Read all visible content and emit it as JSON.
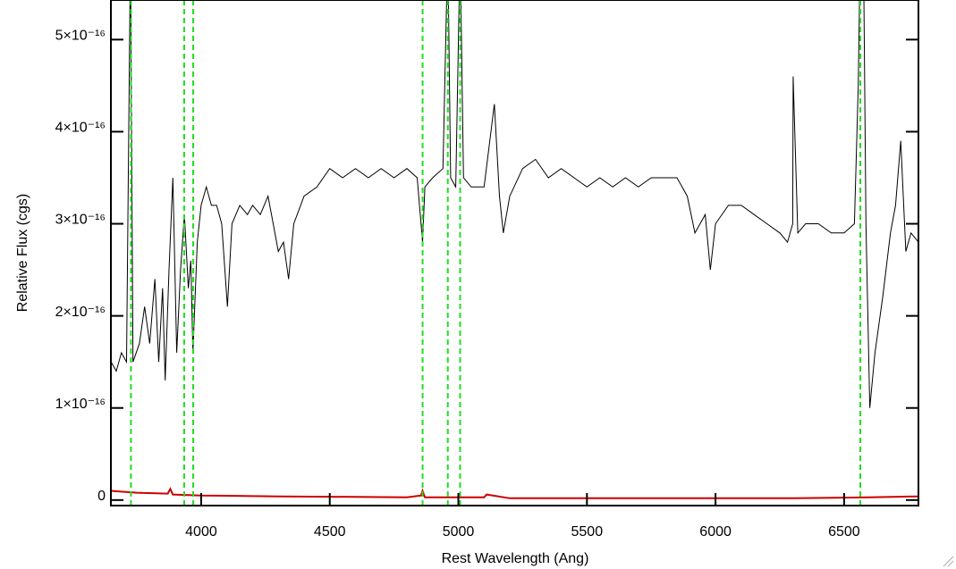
{
  "chart_data": {
    "type": "line",
    "xlabel": "Rest Wavelength (Ang)",
    "ylabel": "Relative Flux (cgs)",
    "xlim": [
      3649,
      6789
    ],
    "ylim": [
      -6e-18,
      5.43e-16
    ],
    "xticks": [
      4000,
      4500,
      5000,
      5500,
      6000,
      6500
    ],
    "yticks": [
      0,
      {
        "value": 1e-16,
        "label": "1×10⁻¹⁶"
      },
      {
        "value": 2e-16,
        "label": "2×10⁻¹⁶"
      },
      {
        "value": 3e-16,
        "label": "3×10⁻¹⁶"
      },
      {
        "value": 4e-16,
        "label": "4×10⁻¹⁶"
      },
      {
        "value": 5e-16,
        "label": "5×10⁻¹⁶"
      }
    ],
    "vlines": [
      3727,
      3934,
      3969,
      4861,
      4959,
      5007,
      6563
    ],
    "vline_color": "#22dd22",
    "series": [
      {
        "color": "#000000",
        "x": [
          3650,
          3670,
          3690,
          3710,
          3725,
          3735,
          3760,
          3780,
          3800,
          3820,
          3835,
          3850,
          3860,
          3875,
          3890,
          3905,
          3920,
          3935,
          3950,
          3960,
          3968,
          3985,
          4000,
          4020,
          4040,
          4060,
          4080,
          4102,
          4120,
          4150,
          4180,
          4200,
          4230,
          4260,
          4280,
          4300,
          4320,
          4340,
          4360,
          4400,
          4450,
          4500,
          4550,
          4600,
          4650,
          4700,
          4750,
          4800,
          4840,
          4855,
          4861,
          4870,
          4900,
          4940,
          4959,
          4970,
          4990,
          5007,
          5020,
          5050,
          5100,
          5140,
          5160,
          5175,
          5200,
          5250,
          5300,
          5350,
          5400,
          5450,
          5500,
          5550,
          5600,
          5650,
          5700,
          5750,
          5800,
          5850,
          5890,
          5920,
          5960,
          5980,
          6000,
          6050,
          6100,
          6150,
          6200,
          6250,
          6280,
          6300,
          6302,
          6320,
          6350,
          6400,
          6450,
          6500,
          6540,
          6555,
          6563,
          6575,
          6585,
          6600,
          6620,
          6650,
          6680,
          6700,
          6720,
          6740,
          6760,
          6789
        ],
        "values": [
          1.5e-16,
          1.4e-16,
          1.6e-16,
          1.5e-16,
          6e-16,
          1.5e-16,
          1.7e-16,
          2.1e-16,
          1.7e-16,
          2.4e-16,
          1.5e-16,
          2.3e-16,
          1.3e-16,
          2.5e-16,
          3.5e-16,
          1.6e-16,
          2.5e-16,
          3.1e-16,
          2.3e-16,
          2.6e-16,
          1.6e-16,
          2.8e-16,
          3.2e-16,
          3.4e-16,
          3.2e-16,
          3.2e-16,
          3e-16,
          2.1e-16,
          3e-16,
          3.2e-16,
          3.1e-16,
          3.2e-16,
          3.1e-16,
          3.3e-16,
          3e-16,
          2.7e-16,
          2.8e-16,
          2.4e-16,
          3e-16,
          3.3e-16,
          3.4e-16,
          3.6e-16,
          3.5e-16,
          3.6e-16,
          3.5e-16,
          3.6e-16,
          3.5e-16,
          3.6e-16,
          3.5e-16,
          3e-16,
          2.8e-16,
          3.4e-16,
          3.5e-16,
          3.6e-16,
          6e-16,
          3.5e-16,
          3.4e-16,
          6e-16,
          3.5e-16,
          3.4e-16,
          3.4e-16,
          4.3e-16,
          3.3e-16,
          2.9e-16,
          3.3e-16,
          3.6e-16,
          3.7e-16,
          3.5e-16,
          3.6e-16,
          3.5e-16,
          3.4e-16,
          3.5e-16,
          3.4e-16,
          3.5e-16,
          3.4e-16,
          3.5e-16,
          3.5e-16,
          3.5e-16,
          3.3e-16,
          2.9e-16,
          3.1e-16,
          2.5e-16,
          3e-16,
          3.2e-16,
          3.2e-16,
          3.1e-16,
          3e-16,
          2.9e-16,
          2.8e-16,
          3e-16,
          4.6e-16,
          2.9e-16,
          3e-16,
          3e-16,
          2.9e-16,
          2.9e-16,
          3e-16,
          4.5e-16,
          6e-16,
          6e-16,
          3e-16,
          1e-16,
          1.6e-16,
          2.2e-16,
          2.9e-16,
          3.2e-16,
          3.9e-16,
          2.7e-16,
          2.9e-16,
          2.8e-16
        ]
      },
      {
        "color": "#cc0000",
        "x": [
          3650,
          3750,
          3870,
          3880,
          3890,
          4000,
          4300,
          4800,
          4855,
          4861,
          4870,
          5000,
          5100,
          5110,
          5200,
          5600,
          6000,
          6300,
          6600,
          6789
        ],
        "values": [
          1e-17,
          8e-18,
          7e-18,
          1.2e-17,
          6e-18,
          5e-18,
          4e-18,
          3e-18,
          5e-18,
          1e-17,
          3e-18,
          3e-18,
          3e-18,
          6e-18,
          2e-18,
          2e-18,
          2e-18,
          2e-18,
          3e-18,
          4e-18
        ]
      }
    ]
  }
}
